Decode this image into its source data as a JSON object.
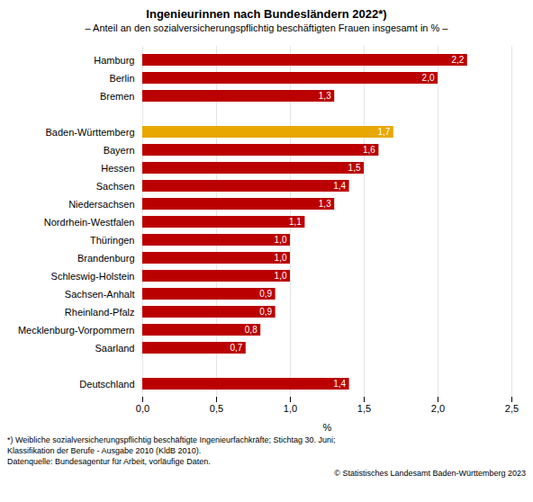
{
  "chart_data": {
    "type": "bar",
    "orientation": "horizontal",
    "title": "Ingenieurinnen nach Bundesländern 2022*)",
    "subtitle": "– Anteil an den sozialversicherungspflichtig beschäftigten Frauen insgesamt in % –",
    "categories": [
      "Deutschland",
      null,
      "Saarland",
      "Mecklenburg-Vorpommern",
      "Rheinland-Pfalz",
      "Sachsen-Anhalt",
      "Schleswig-Holstein",
      "Brandenburg",
      "Thüringen",
      "Nordrhein-Westfalen",
      "Niedersachsen",
      "Sachsen",
      "Hessen",
      "Bayern",
      "Baden-Württemberg",
      null,
      "Bremen",
      "Berlin",
      "Hamburg"
    ],
    "values": [
      1.4,
      null,
      0.7,
      0.8,
      0.9,
      0.9,
      1.0,
      1.0,
      1.0,
      1.1,
      1.3,
      1.4,
      1.5,
      1.6,
      1.7,
      null,
      1.3,
      2.0,
      2.2
    ],
    "value_labels": [
      "1,4",
      null,
      "0,7",
      "0,8",
      "0,9",
      "0,9",
      "1,0",
      "1,0",
      "1,0",
      "1,1",
      "1,3",
      "1,4",
      "1,5",
      "1,6",
      "1,7",
      null,
      "1,3",
      "2,0",
      "2,2"
    ],
    "data_labels": true,
    "colors": [
      "#BB0000",
      null,
      "#BB0000",
      "#BB0000",
      "#BB0000",
      "#BB0000",
      "#BB0000",
      "#BB0000",
      "#BB0000",
      "#BB0000",
      "#BB0000",
      "#BB0000",
      "#BB0000",
      "#BB0000",
      "#E8A800",
      null,
      "#BB0000",
      "#BB0000",
      "#BB0000"
    ],
    "xlim": [
      0,
      2.5
    ],
    "xticks": [
      {
        "value": 0.0,
        "label": "0,0"
      },
      {
        "value": 0.5,
        "label": "0,5"
      },
      {
        "value": 1.0,
        "label": "1,0"
      },
      {
        "value": 1.5,
        "label": "1,5"
      },
      {
        "value": 2.0,
        "label": "2,0"
      },
      {
        "value": 2.5,
        "label": "2,5"
      }
    ],
    "xlabel": "%",
    "grid": true,
    "footnotes": [
      "*) Weibliche sozialversicherungspflichtig beschäftigte Ingenieurfachkräfte; Stichtag 30. Juni;",
      "Klassifikation der Berufe - Ausgabe 2010 (KldB 2010).",
      "Datenquelle: Bundesagentur für Arbeit, vorläufige Daten."
    ],
    "copyright": "© Statistisches Landesamt Baden-Württemberg 2023"
  }
}
